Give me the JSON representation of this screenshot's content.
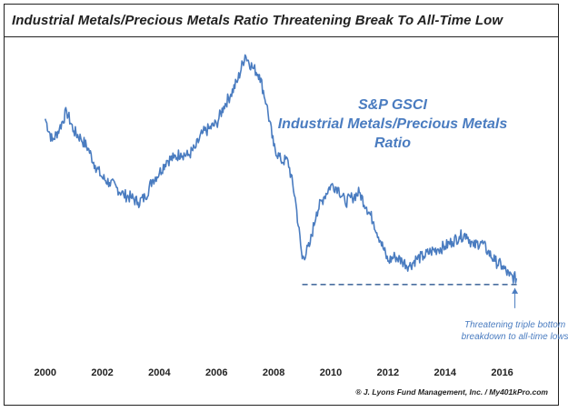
{
  "header": {
    "title": "Industrial Metals/Precious Metals Ratio Threatening Break To All-Time Low"
  },
  "credit": "® J. Lyons Fund Management, Inc. / My401kPro.com",
  "chart_data": {
    "type": "line",
    "title": "Industrial Metals/Precious Metals Ratio Threatening Break To All-Time Low",
    "series_label_lines": [
      "S&P GSCI",
      "Industrial Metals/Precious Metals",
      "Ratio"
    ],
    "x_ticks": [
      "2000",
      "2002",
      "2004",
      "2006",
      "2008",
      "2010",
      "2012",
      "2014",
      "2016"
    ],
    "xlim": [
      1999.5,
      2017.0
    ],
    "ylim": [
      0,
      100
    ],
    "y_axis_labels": "none",
    "grid": false,
    "line_color": "#4a7cc0",
    "series": [
      {
        "name": "S&P GSCI Industrial Metals/Precious Metals Ratio",
        "x": [
          2000.0,
          2000.25,
          2000.5,
          2000.75,
          2001.0,
          2001.25,
          2001.5,
          2001.75,
          2002.0,
          2002.25,
          2002.5,
          2002.75,
          2003.0,
          2003.25,
          2003.5,
          2003.75,
          2004.0,
          2004.25,
          2004.5,
          2004.75,
          2005.0,
          2005.25,
          2005.5,
          2005.75,
          2006.0,
          2006.25,
          2006.5,
          2006.75,
          2007.0,
          2007.25,
          2007.5,
          2007.75,
          2008.0,
          2008.25,
          2008.5,
          2008.75,
          2009.0,
          2009.25,
          2009.5,
          2009.75,
          2010.0,
          2010.25,
          2010.5,
          2010.75,
          2011.0,
          2011.25,
          2011.5,
          2011.75,
          2012.0,
          2012.25,
          2012.5,
          2012.75,
          2013.0,
          2013.25,
          2013.5,
          2013.75,
          2014.0,
          2014.25,
          2014.5,
          2014.75,
          2015.0,
          2015.25,
          2015.5,
          2015.75,
          2016.0,
          2016.25,
          2016.5
        ],
        "y": [
          72,
          63,
          68,
          75,
          67,
          64,
          60,
          53,
          48,
          46,
          44,
          41,
          40,
          38,
          40,
          47,
          50,
          55,
          56,
          58,
          57,
          60,
          66,
          68,
          70,
          77,
          82,
          88,
          98,
          93,
          90,
          78,
          61,
          55,
          55,
          40,
          15,
          20,
          34,
          40,
          45,
          44,
          38,
          40,
          42,
          36,
          30,
          22,
          14,
          16,
          14,
          12,
          15,
          16,
          18,
          19,
          20,
          22,
          24,
          25,
          20,
          22,
          18,
          14,
          12,
          8,
          7
        ]
      }
    ],
    "support_line": {
      "y": 4.5,
      "x_start": 2009.0,
      "x_end": 2016.6,
      "style": "dashed"
    },
    "annotation": {
      "lines": [
        "Threatening triple bottom",
        "breakdown to all-time lows"
      ],
      "target_x": 2016.0,
      "target_y": 4.5
    }
  }
}
